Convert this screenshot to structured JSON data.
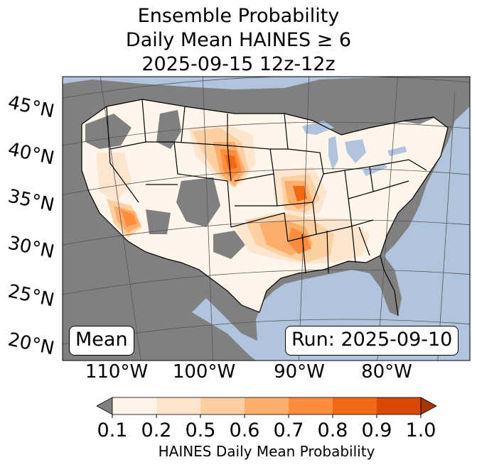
{
  "title": {
    "line1": "Ensemble Probability",
    "line2": "Daily Mean HAINES ≥ 6",
    "line3": "2025-09-15 12z-12z"
  },
  "map": {
    "lat_labels": [
      "45°N",
      "40°N",
      "35°N",
      "30°N",
      "25°N",
      "20°N"
    ],
    "lon_labels": [
      "110°W",
      "100°W",
      "90°W",
      "80°W"
    ],
    "stat_label": "Mean",
    "run_label": "Run: 2025-09-10",
    "colors": {
      "ocean": "#b1c4de",
      "nodata": "#808080",
      "land_low": "#fff5eb"
    }
  },
  "colorbar": {
    "title": "HAINES Daily Mean Probability",
    "tick_labels": [
      "0.1",
      "0.2",
      "0.5",
      "0.6",
      "0.7",
      "0.8",
      "0.9",
      "1.0"
    ],
    "colors": [
      "#fff5eb",
      "#fee6ce",
      "#fdd0a2",
      "#fdae6b",
      "#fd8d3c",
      "#f16913",
      "#d94801",
      "#a63603"
    ],
    "under_color": "#808080"
  }
}
